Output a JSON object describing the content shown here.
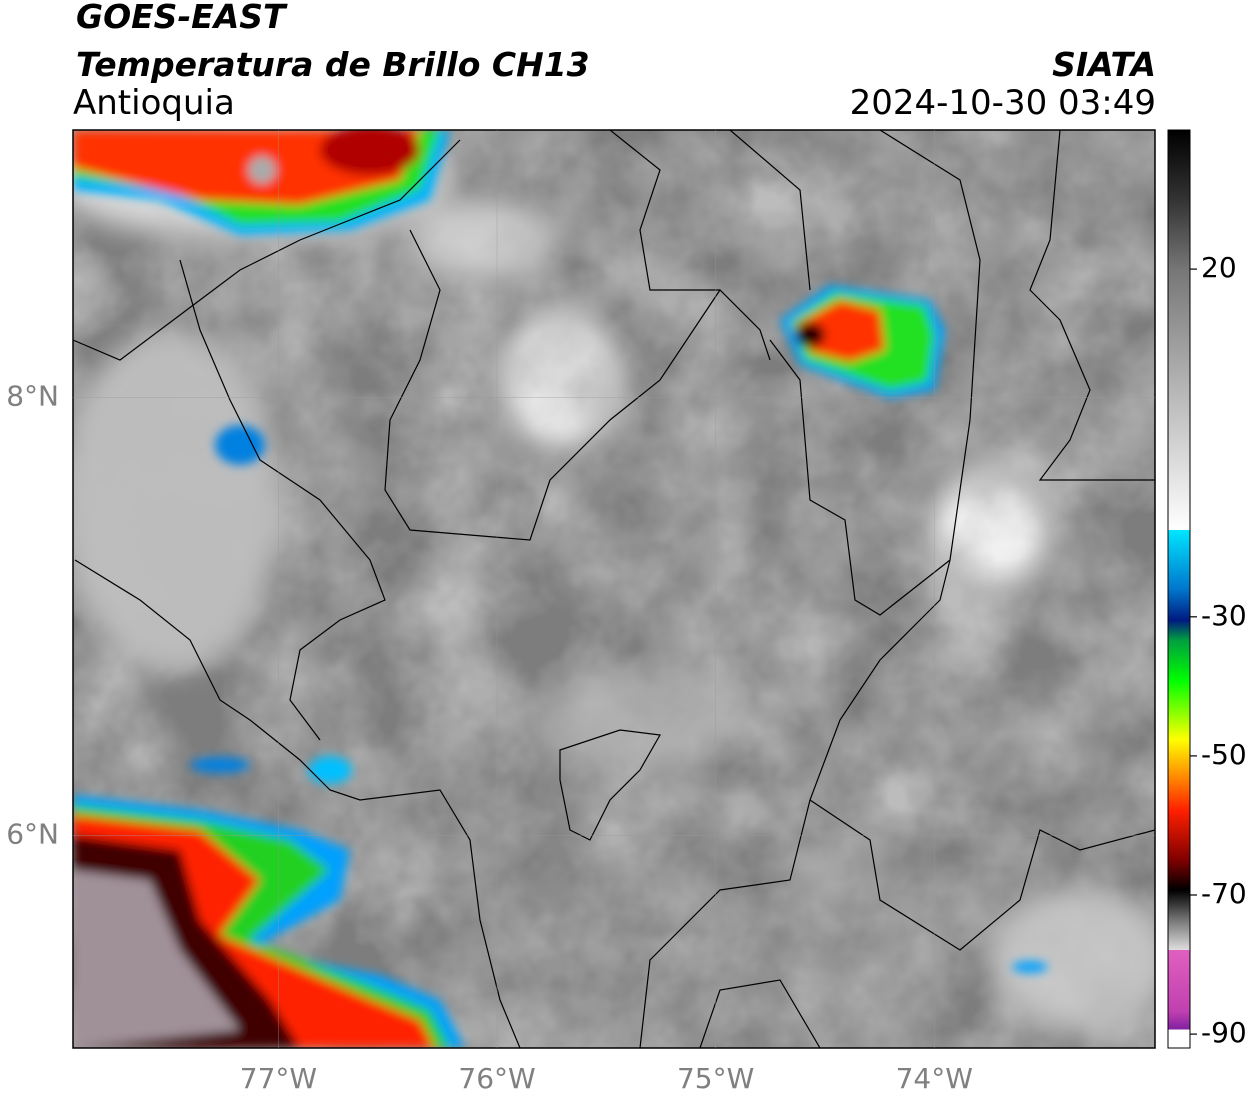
{
  "header": {
    "title": "GOES-EAST",
    "subtitle": "Temperatura de Brillo CH13",
    "region": "Antioquia",
    "source": "SIATA",
    "timestamp": "2024-10-30 03:49"
  },
  "map": {
    "xlim": [
      -77.94,
      -72.99
    ],
    "ylim": [
      5.03,
      9.22
    ],
    "xticks": [
      {
        "value": -77,
        "label": "77°W"
      },
      {
        "value": -76,
        "label": "76°W"
      },
      {
        "value": -75,
        "label": "75°W"
      },
      {
        "value": -74,
        "label": "74°W"
      }
    ],
    "yticks": [
      {
        "value": 8,
        "label": "8°N"
      },
      {
        "value": 6,
        "label": "6°N"
      }
    ],
    "grid": true
  },
  "colorbar": {
    "lim": [
      -92,
      40
    ],
    "ticks": [
      20,
      -30,
      -50,
      -70,
      -90
    ]
  }
}
